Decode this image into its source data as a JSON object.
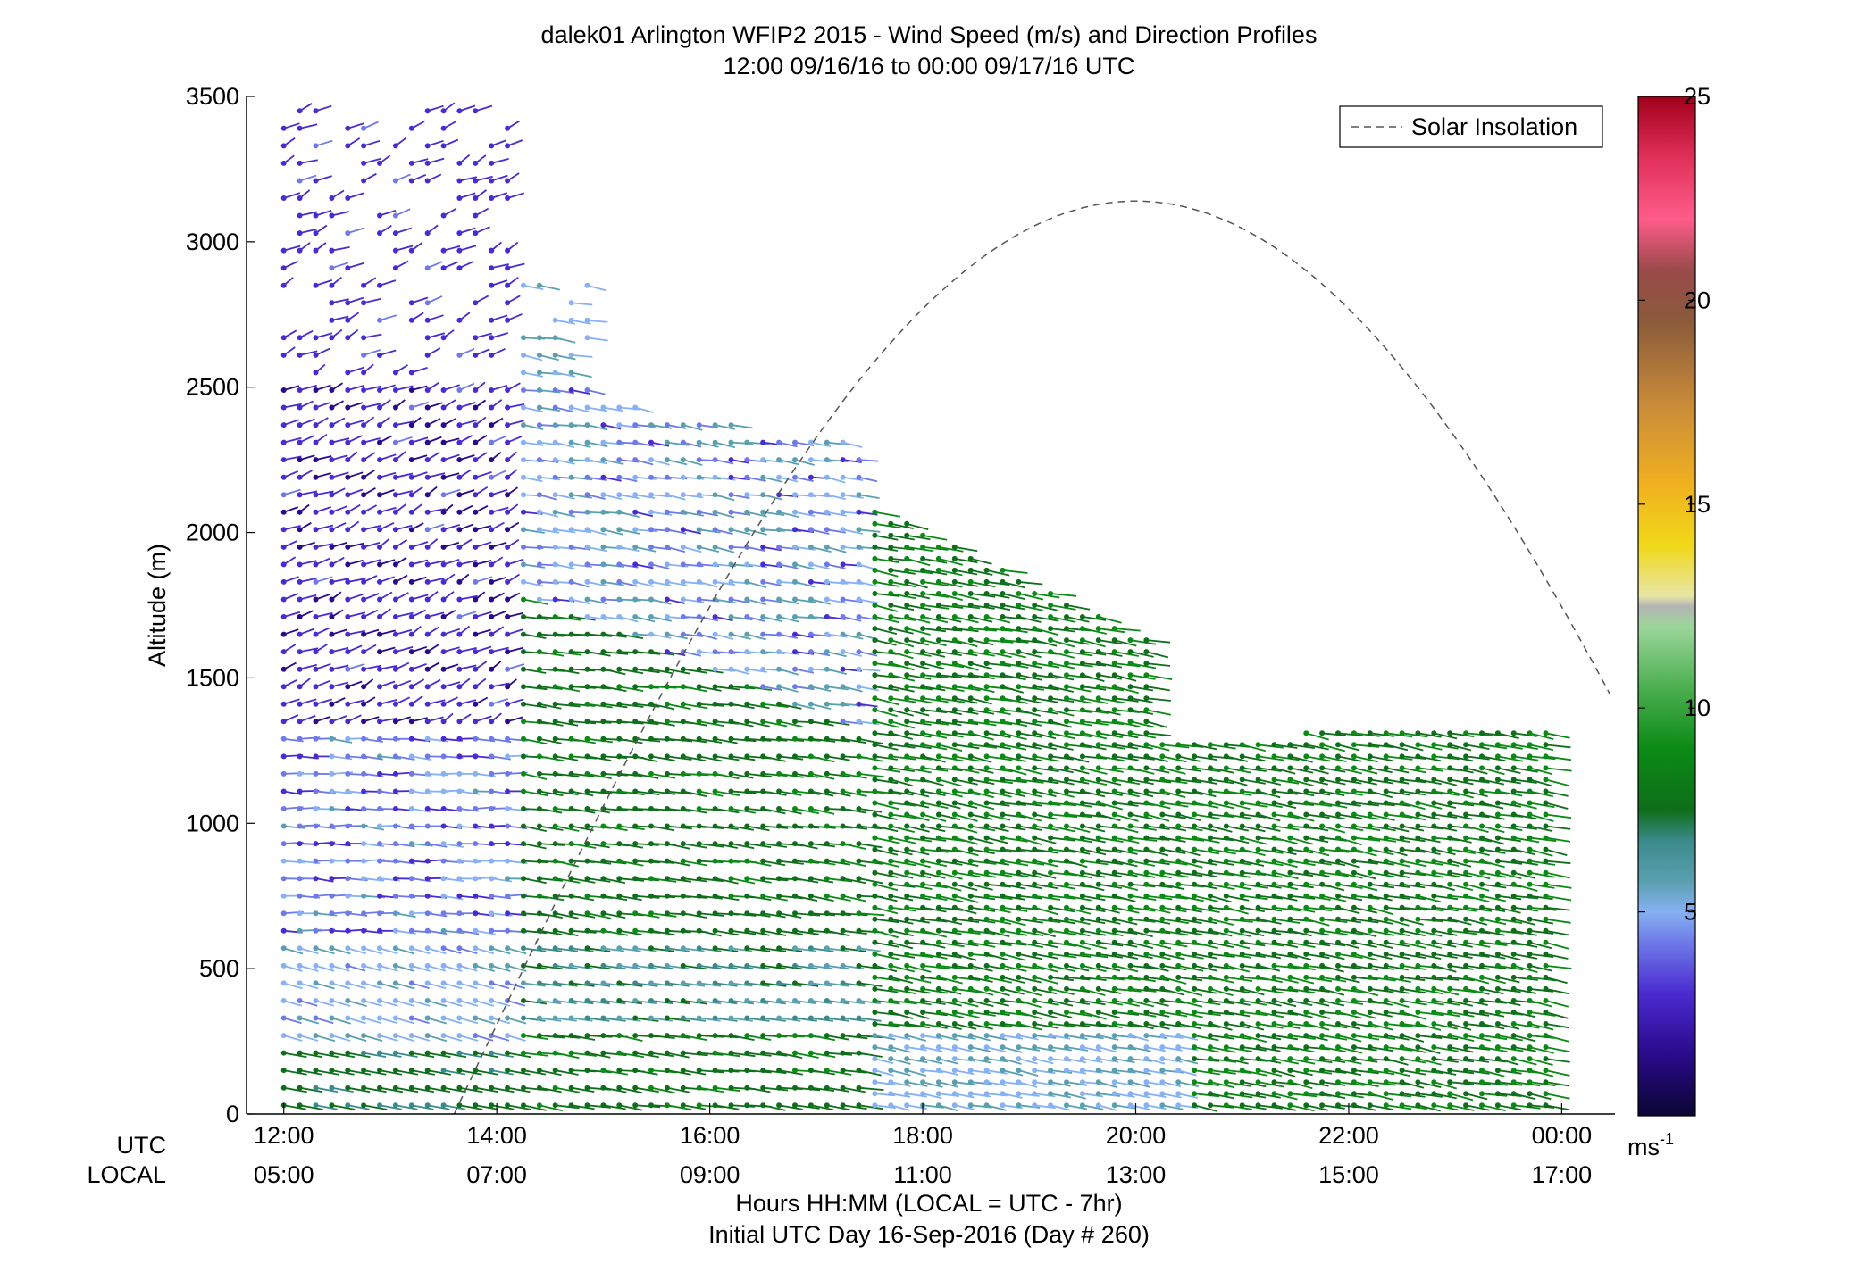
{
  "chart_data": {
    "type": "wind-barb-profile",
    "title": "dalek01 Arlington WFIP2 2015 - Wind Speed (m/s) and Direction Profiles",
    "subtitle": "12:00 09/16/16 to 00:00 09/17/16  UTC",
    "ylabel": "Altitude (m)",
    "xlabel": "Hours HH:MM  (LOCAL = UTC - 7hr)",
    "footer": "Initial UTC Day 16-Sep-2016 (Day # 260)",
    "utc_row_label": "UTC",
    "local_row_label": "LOCAL",
    "xlim_hours": [
      11.65,
      24.5
    ],
    "ylim": [
      0,
      3500
    ],
    "y_ticks": [
      0,
      500,
      1000,
      1500,
      2000,
      2500,
      3000,
      3500
    ],
    "x_ticks": [
      {
        "hour": 12,
        "utc": "12:00",
        "local": "05:00"
      },
      {
        "hour": 14,
        "utc": "14:00",
        "local": "07:00"
      },
      {
        "hour": 16,
        "utc": "16:00",
        "local": "09:00"
      },
      {
        "hour": 18,
        "utc": "18:00",
        "local": "11:00"
      },
      {
        "hour": 20,
        "utc": "20:00",
        "local": "13:00"
      },
      {
        "hour": 22,
        "utc": "22:00",
        "local": "15:00"
      },
      {
        "hour": 24,
        "utc": "00:00",
        "local": "17:00"
      }
    ],
    "legend": {
      "label": "Solar Insolation",
      "placement": "top-right"
    },
    "solar_insolation": {
      "peak_hour": 20.0,
      "peak_altitude": 3140,
      "start_hour": 13.6
    },
    "colorbar": {
      "range": [
        0,
        25
      ],
      "ticks": [
        5,
        10,
        15,
        20,
        25
      ],
      "unit": "ms",
      "unit_exp": "-1"
    },
    "wind_profile_summary": [
      {
        "region": "12:00-14:00 above 1300 m",
        "speed_ms": [
          2,
          4
        ],
        "direction": "westerly / northwesterly"
      },
      {
        "region": "12:00-14:00 600-1300 m",
        "speed_ms": [
          3,
          6
        ]
      },
      {
        "region": "after 14:00 below 1300 m",
        "speed_ms": [
          7,
          11
        ],
        "direction": "west-southwesterly"
      },
      {
        "region": "near surface throughout",
        "speed_ms": [
          5,
          9
        ]
      }
    ]
  }
}
